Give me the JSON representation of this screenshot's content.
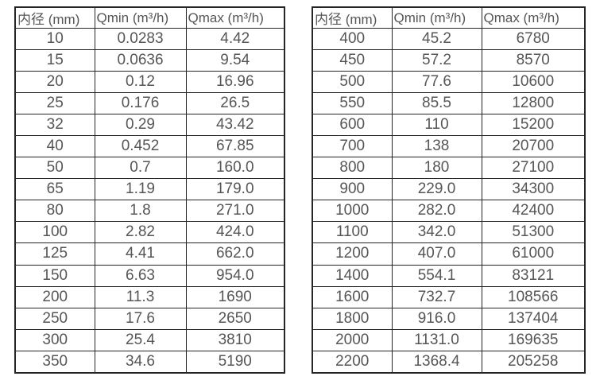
{
  "page": {
    "background_color": "#ffffff",
    "text_color": "#565656",
    "border_color": "#262626"
  },
  "tables": [
    {
      "name": "small-diameter-flow-ranges",
      "headers": [
        "内径 (mm)",
        "Qmin (m³/h)",
        "Qmax (m³/h)"
      ],
      "rows": [
        [
          "10",
          "0.0283",
          "4.42"
        ],
        [
          "15",
          "0.0636",
          "9.54"
        ],
        [
          "20",
          "0.12",
          "16.96"
        ],
        [
          "25",
          "0.176",
          "26.5"
        ],
        [
          "32",
          "0.29",
          "43.42"
        ],
        [
          "40",
          "0.452",
          "67.85"
        ],
        [
          "50",
          "0.7",
          "160.0"
        ],
        [
          "65",
          "1.19",
          "179.0"
        ],
        [
          "80",
          "1.8",
          "271.0"
        ],
        [
          "100",
          "2.82",
          "424.0"
        ],
        [
          "125",
          "4.41",
          "662.0"
        ],
        [
          "150",
          "6.63",
          "954.0"
        ],
        [
          "200",
          "11.3",
          "1690"
        ],
        [
          "250",
          "17.6",
          "2650"
        ],
        [
          "300",
          "25.4",
          "3810"
        ],
        [
          "350",
          "34.6",
          "5190"
        ]
      ]
    },
    {
      "name": "large-diameter-flow-ranges",
      "headers": [
        "内径 (mm)",
        "Qmin (m³/h)",
        "Qmax (m³/h)"
      ],
      "rows": [
        [
          "400",
          "45.2",
          "6780"
        ],
        [
          "450",
          "57.2",
          "8570"
        ],
        [
          "500",
          "77.6",
          "10600"
        ],
        [
          "550",
          "85.5",
          "12800"
        ],
        [
          "600",
          "110",
          "15200"
        ],
        [
          "700",
          "138",
          "20700"
        ],
        [
          "800",
          "180",
          "27100"
        ],
        [
          "900",
          "229.0",
          "34300"
        ],
        [
          "1000",
          "282.0",
          "42400"
        ],
        [
          "1100",
          "342.0",
          "51300"
        ],
        [
          "1200",
          "407.0",
          "61000"
        ],
        [
          "1400",
          "554.1",
          "83121"
        ],
        [
          "1600",
          "732.7",
          "108566"
        ],
        [
          "1800",
          "916.0",
          "137404"
        ],
        [
          "2000",
          "1131.0",
          "169635"
        ],
        [
          "2200",
          "1368.4",
          "205258"
        ]
      ]
    }
  ]
}
